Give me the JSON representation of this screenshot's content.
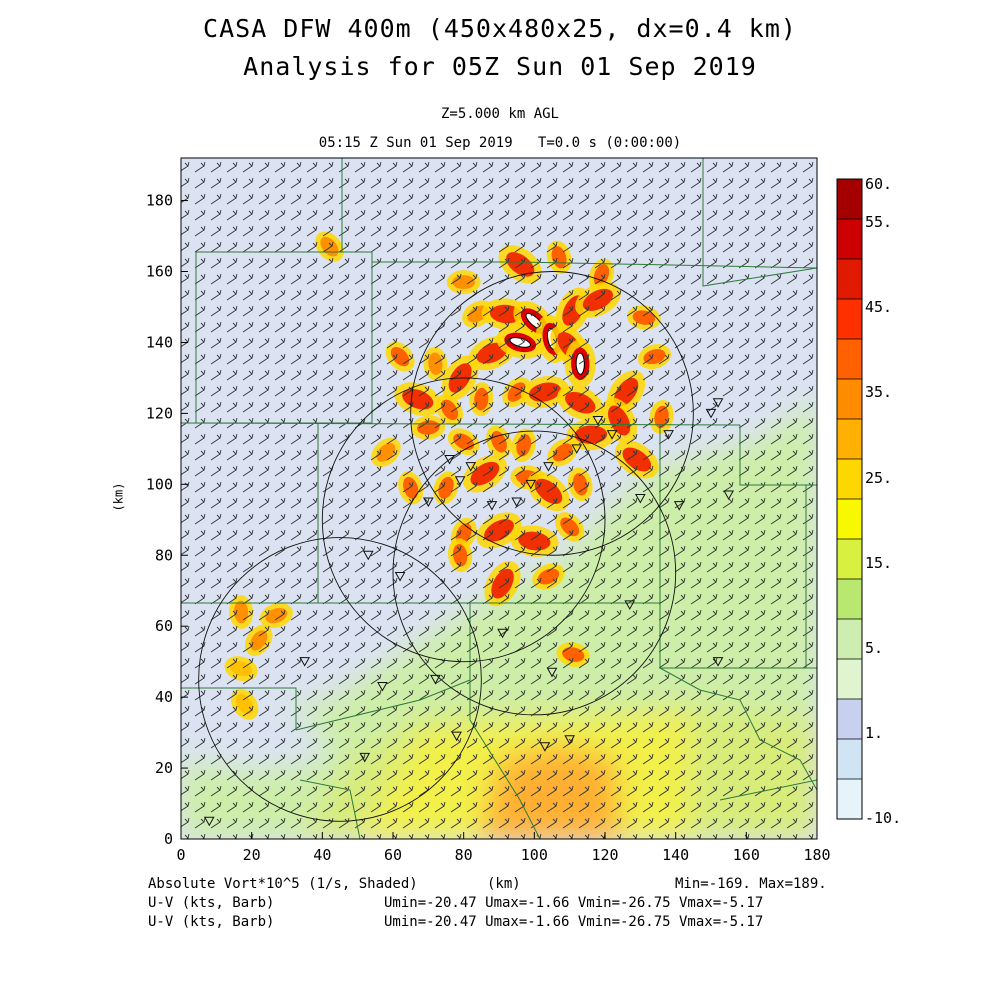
{
  "header": {
    "title_line1": "CASA DFW 400m (450x480x25, dx=0.4 km)",
    "title_line2": "Analysis for 05Z Sun 01 Sep 2019",
    "level": "Z=5.000 km AGL",
    "time": "05:15 Z Sun 01 Sep 2019   T=0.0 s (0:00:00)"
  },
  "footer": {
    "field_label": "Absolute Vort*10^5 (1/s, Shaded)",
    "xunit": "(km)",
    "minmax": "Min=-169. Max=189.",
    "vec1_label": "U-V (kts, Barb)",
    "vec1_stats": "Umin=-20.47 Umax=-1.66 Vmin=-26.75 Vmax=-5.17",
    "vec2_label": "U-V (kts, Barb)",
    "vec2_stats": "Umin=-20.47 Umax=-1.66 Vmin=-26.75 Vmax=-5.17"
  },
  "colors": {
    "bg_low": "#dbe3f3",
    "bg_mid": "#cdeea8",
    "bg_high": "#f2f04a",
    "core": "#ffb030",
    "barb": "#333333",
    "boundary": "#2f7a3a"
  },
  "chart_data": {
    "type": "heatmap",
    "xlabel": "(km)",
    "ylabel": "(km)",
    "xlim": [
      0,
      180
    ],
    "ylim": [
      0,
      192
    ],
    "xticks": [
      "0",
      "20",
      "40",
      "60",
      "80",
      "100",
      "120",
      "140",
      "160",
      "180"
    ],
    "yticks": [
      "0",
      "20",
      "40",
      "60",
      "80",
      "100",
      "120",
      "140",
      "160",
      "180"
    ],
    "colorbar": {
      "labels": [
        "60.",
        "55.",
        "45.",
        "35.",
        "25.",
        "15.",
        "5.",
        "1.",
        "-10."
      ],
      "colors": [
        "#a50000",
        "#cc0000",
        "#e01a00",
        "#ff3000",
        "#ff6000",
        "#ff8c00",
        "#ffb000",
        "#ffd700",
        "#f8f800",
        "#d8f040",
        "#b8e870",
        "#cdeeb0",
        "#e0f4d0",
        "#c8d0f0",
        "#d0e4f4",
        "#e6f4fa"
      ]
    },
    "radar_rings": [
      {
        "cx": 105,
        "cy": 120,
        "r": 40
      },
      {
        "cx": 80,
        "cy": 90,
        "r": 40
      },
      {
        "cx": 100,
        "cy": 75,
        "r": 40
      },
      {
        "cx": 45,
        "cy": 45,
        "r": 40
      }
    ],
    "radar_sites": [
      [
        8,
        5
      ],
      [
        35,
        50
      ],
      [
        53,
        80
      ],
      [
        62,
        74
      ],
      [
        70,
        95
      ],
      [
        76,
        107
      ],
      [
        79,
        101
      ],
      [
        82,
        105
      ],
      [
        88,
        94
      ],
      [
        95,
        95
      ],
      [
        99,
        100
      ],
      [
        104,
        105
      ],
      [
        112,
        110
      ],
      [
        118,
        118
      ],
      [
        122,
        114
      ],
      [
        130,
        96
      ],
      [
        138,
        114
      ],
      [
        141,
        94
      ],
      [
        150,
        120
      ],
      [
        152,
        123
      ],
      [
        155,
        97
      ],
      [
        127,
        66
      ],
      [
        105,
        47
      ],
      [
        91,
        58
      ],
      [
        72,
        45
      ],
      [
        57,
        43
      ],
      [
        52,
        23
      ],
      [
        78,
        29
      ],
      [
        103,
        26
      ],
      [
        110,
        28
      ],
      [
        152,
        50
      ]
    ],
    "vorticity_cells": [
      {
        "x": 80,
        "y": 157,
        "v": 35
      },
      {
        "x": 96,
        "y": 162,
        "v": 45
      },
      {
        "x": 107,
        "y": 164,
        "v": 40
      },
      {
        "x": 119,
        "y": 159,
        "v": 40
      },
      {
        "x": 84,
        "y": 148,
        "v": 35
      },
      {
        "x": 92,
        "y": 148,
        "v": 45
      },
      {
        "x": 100,
        "y": 146,
        "v": 55
      },
      {
        "x": 105,
        "y": 141,
        "v": 55
      },
      {
        "x": 111,
        "y": 149,
        "v": 45
      },
      {
        "x": 118,
        "y": 152,
        "v": 45
      },
      {
        "x": 131,
        "y": 147,
        "v": 40
      },
      {
        "x": 62,
        "y": 136,
        "v": 40
      },
      {
        "x": 72,
        "y": 134,
        "v": 35
      },
      {
        "x": 79,
        "y": 130,
        "v": 45
      },
      {
        "x": 88,
        "y": 137,
        "v": 45
      },
      {
        "x": 96,
        "y": 140,
        "v": 55
      },
      {
        "x": 110,
        "y": 139,
        "v": 45
      },
      {
        "x": 113,
        "y": 134,
        "v": 55
      },
      {
        "x": 126,
        "y": 126,
        "v": 45
      },
      {
        "x": 134,
        "y": 136,
        "v": 40
      },
      {
        "x": 67,
        "y": 124,
        "v": 45
      },
      {
        "x": 76,
        "y": 121,
        "v": 40
      },
      {
        "x": 85,
        "y": 124,
        "v": 40
      },
      {
        "x": 95,
        "y": 126,
        "v": 40
      },
      {
        "x": 103,
        "y": 126,
        "v": 45
      },
      {
        "x": 113,
        "y": 123,
        "v": 45
      },
      {
        "x": 124,
        "y": 118,
        "v": 45
      },
      {
        "x": 136,
        "y": 119,
        "v": 40
      },
      {
        "x": 58,
        "y": 109,
        "v": 35
      },
      {
        "x": 70,
        "y": 116,
        "v": 40
      },
      {
        "x": 80,
        "y": 112,
        "v": 40
      },
      {
        "x": 90,
        "y": 112,
        "v": 40
      },
      {
        "x": 97,
        "y": 111,
        "v": 40
      },
      {
        "x": 108,
        "y": 109,
        "v": 40
      },
      {
        "x": 116,
        "y": 114,
        "v": 45
      },
      {
        "x": 129,
        "y": 107,
        "v": 45
      },
      {
        "x": 65,
        "y": 99,
        "v": 40
      },
      {
        "x": 75,
        "y": 99,
        "v": 40
      },
      {
        "x": 86,
        "y": 103,
        "v": 45
      },
      {
        "x": 98,
        "y": 102,
        "v": 40
      },
      {
        "x": 104,
        "y": 98,
        "v": 45
      },
      {
        "x": 113,
        "y": 100,
        "v": 40
      },
      {
        "x": 80,
        "y": 86,
        "v": 40
      },
      {
        "x": 90,
        "y": 87,
        "v": 45
      },
      {
        "x": 100,
        "y": 84,
        "v": 45
      },
      {
        "x": 110,
        "y": 88,
        "v": 40
      },
      {
        "x": 79,
        "y": 80,
        "v": 40
      },
      {
        "x": 91,
        "y": 72,
        "v": 45
      },
      {
        "x": 104,
        "y": 74,
        "v": 40
      },
      {
        "x": 111,
        "y": 52,
        "v": 40
      },
      {
        "x": 42,
        "y": 167,
        "v": 35
      },
      {
        "x": 17,
        "y": 64,
        "v": 35
      },
      {
        "x": 22,
        "y": 56,
        "v": 35
      },
      {
        "x": 27,
        "y": 63,
        "v": 35
      },
      {
        "x": 17,
        "y": 48,
        "v": 30
      },
      {
        "x": 18,
        "y": 38,
        "v": 30
      }
    ]
  }
}
